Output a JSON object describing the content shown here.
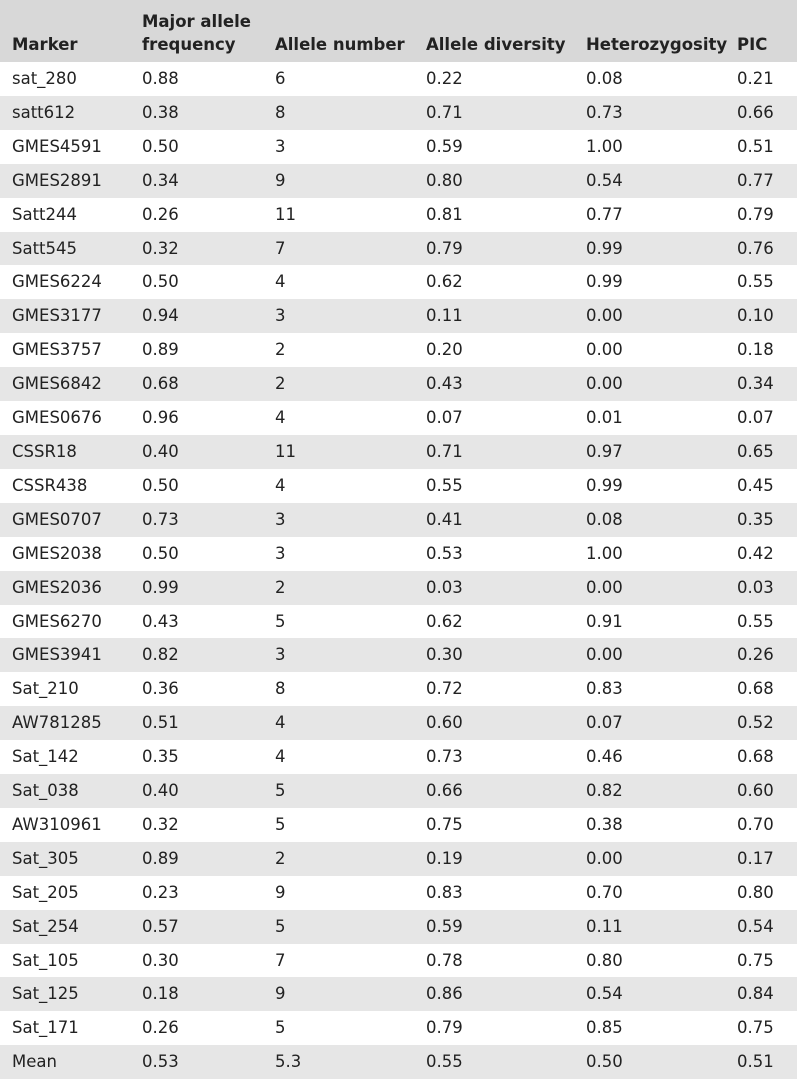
{
  "table": {
    "headers": [
      "Marker",
      "Major allele frequency",
      "Allele number",
      "Allele diversity",
      "Heterozygosity",
      "PIC"
    ],
    "header_lines": {
      "freq_line1": "Major allele",
      "freq_line2": "frequency"
    },
    "rows": [
      [
        "sat_280",
        "0.88",
        "6",
        "0.22",
        "0.08",
        "0.21"
      ],
      [
        "satt612",
        "0.38",
        "8",
        "0.71",
        "0.73",
        "0.66"
      ],
      [
        "GMES4591",
        "0.50",
        "3",
        "0.59",
        "1.00",
        "0.51"
      ],
      [
        "GMES2891",
        "0.34",
        "9",
        "0.80",
        "0.54",
        "0.77"
      ],
      [
        "Satt244",
        "0.26",
        "11",
        "0.81",
        "0.77",
        "0.79"
      ],
      [
        "Satt545",
        "0.32",
        "7",
        "0.79",
        "0.99",
        "0.76"
      ],
      [
        "GMES6224",
        "0.50",
        "4",
        "0.62",
        "0.99",
        "0.55"
      ],
      [
        "GMES3177",
        "0.94",
        "3",
        "0.11",
        "0.00",
        "0.10"
      ],
      [
        "GMES3757",
        "0.89",
        "2",
        "0.20",
        "0.00",
        "0.18"
      ],
      [
        "GMES6842",
        "0.68",
        "2",
        "0.43",
        "0.00",
        "0.34"
      ],
      [
        "GMES0676",
        "0.96",
        "4",
        "0.07",
        "0.01",
        "0.07"
      ],
      [
        "CSSR18",
        "0.40",
        "11",
        "0.71",
        "0.97",
        "0.65"
      ],
      [
        "CSSR438",
        "0.50",
        "4",
        "0.55",
        "0.99",
        "0.45"
      ],
      [
        "GMES0707",
        "0.73",
        "3",
        "0.41",
        "0.08",
        "0.35"
      ],
      [
        "GMES2038",
        "0.50",
        "3",
        "0.53",
        "1.00",
        "0.42"
      ],
      [
        "GMES2036",
        "0.99",
        "2",
        "0.03",
        "0.00",
        "0.03"
      ],
      [
        "GMES6270",
        "0.43",
        "5",
        "0.62",
        "0.91",
        "0.55"
      ],
      [
        "GMES3941",
        "0.82",
        "3",
        "0.30",
        "0.00",
        "0.26"
      ],
      [
        "Sat_210",
        "0.36",
        "8",
        "0.72",
        "0.83",
        "0.68"
      ],
      [
        "AW781285",
        "0.51",
        "4",
        "0.60",
        "0.07",
        "0.52"
      ],
      [
        "Sat_142",
        "0.35",
        "4",
        "0.73",
        "0.46",
        "0.68"
      ],
      [
        "Sat_038",
        "0.40",
        "5",
        "0.66",
        "0.82",
        "0.60"
      ],
      [
        "AW310961",
        "0.32",
        "5",
        "0.75",
        "0.38",
        "0.70"
      ],
      [
        "Sat_305",
        "0.89",
        "2",
        "0.19",
        "0.00",
        "0.17"
      ],
      [
        "Sat_205",
        "0.23",
        "9",
        "0.83",
        "0.70",
        "0.80"
      ],
      [
        "Sat_254",
        "0.57",
        "5",
        "0.59",
        "0.11",
        "0.54"
      ],
      [
        "Sat_105",
        "0.30",
        "7",
        "0.78",
        "0.80",
        "0.75"
      ],
      [
        "Sat_125",
        "0.18",
        "9",
        "0.86",
        "0.54",
        "0.84"
      ],
      [
        "Sat_171",
        "0.26",
        "5",
        "0.79",
        "0.85",
        "0.75"
      ],
      [
        "Mean",
        "0.53",
        "5.3",
        "0.55",
        "0.50",
        "0.51"
      ]
    ]
  }
}
